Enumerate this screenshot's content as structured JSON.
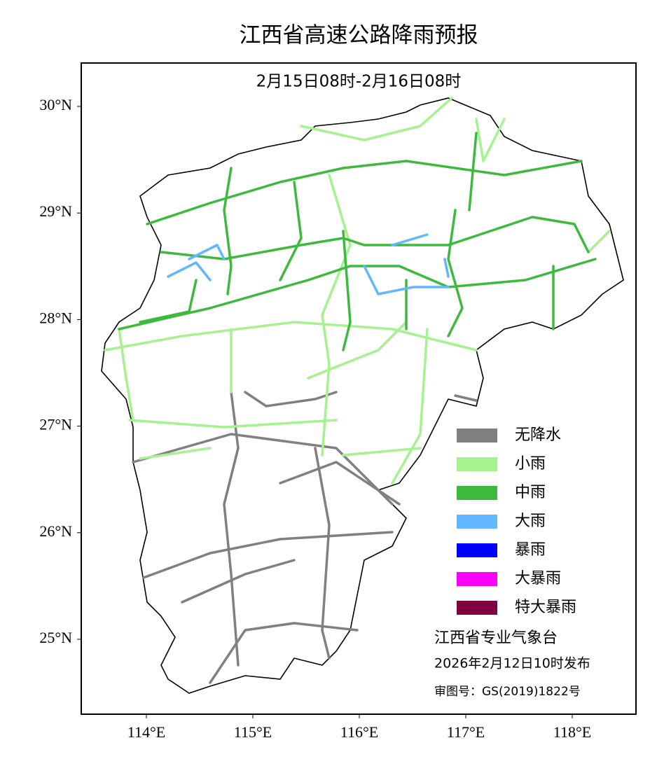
{
  "map": {
    "title": "江西省高速公路降雨预报",
    "subtitle": "2月15日08时-2月16日08时",
    "lat_ticks": [
      {
        "value": 30,
        "label": "30°N"
      },
      {
        "value": 29,
        "label": "29°N"
      },
      {
        "value": 28,
        "label": "28°N"
      },
      {
        "value": 27,
        "label": "27°N"
      },
      {
        "value": 26,
        "label": "26°N"
      },
      {
        "value": 25,
        "label": "25°N"
      }
    ],
    "lon_ticks": [
      {
        "value": 114,
        "label": "114°E"
      },
      {
        "value": 115,
        "label": "115°E"
      },
      {
        "value": 116,
        "label": "116°E"
      },
      {
        "value": 117,
        "label": "117°E"
      },
      {
        "value": 118,
        "label": "118°E"
      }
    ],
    "legend": [
      {
        "name": "无降水",
        "color": "#808080"
      },
      {
        "name": "小雨",
        "color": "#a6f28f"
      },
      {
        "name": "中雨",
        "color": "#3dba3d"
      },
      {
        "name": "大雨",
        "color": "#61b8ff"
      },
      {
        "name": "暴雨",
        "color": "#0000fe"
      },
      {
        "name": "大暴雨",
        "color": "#fa00fa"
      },
      {
        "name": "特大暴雨",
        "color": "#800040"
      }
    ],
    "issuer": "江西省专业气象台",
    "issued": "2026年2月12日10时发布",
    "approval": "审图号：GS(2019)1822号"
  }
}
